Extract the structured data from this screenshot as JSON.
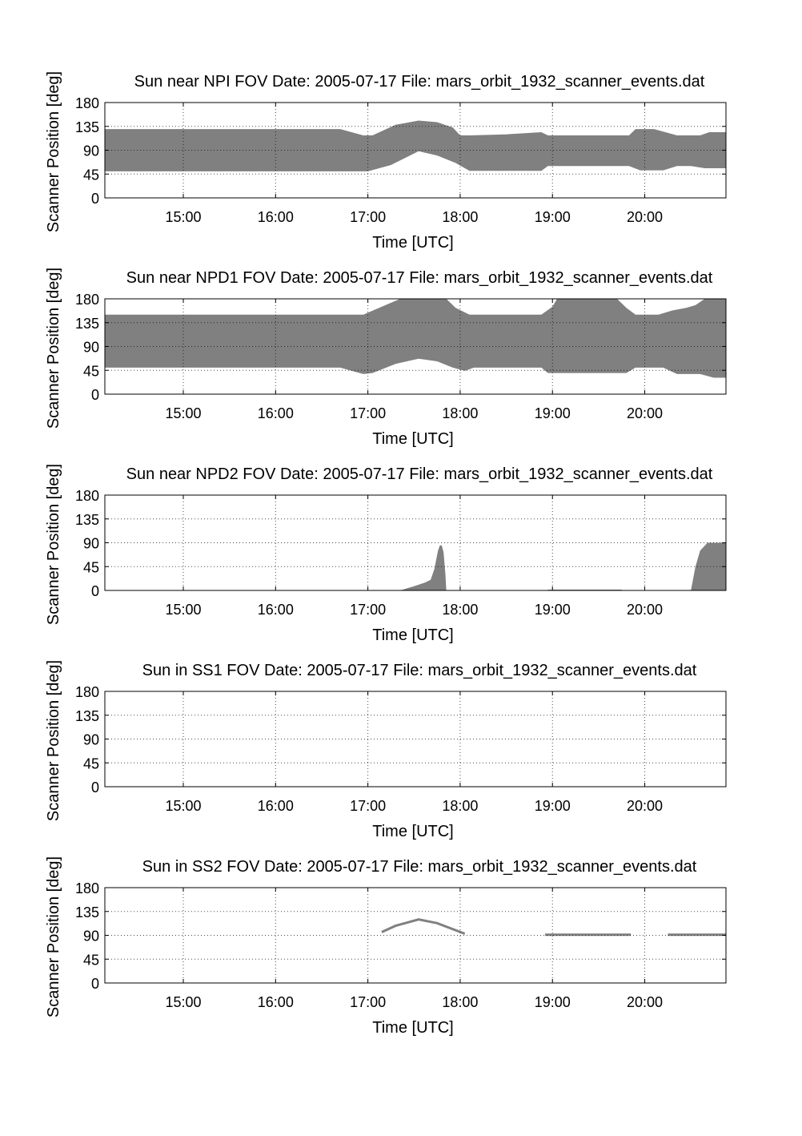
{
  "chart_data": [
    {
      "type": "area",
      "title": "Sun near NPI FOV   Date: 2005-07-17   File: mars_orbit_1932_scanner_events.dat",
      "xlabel": "Time [UTC]",
      "ylabel": "Scanner Position [deg]",
      "xticks": [
        "15:00",
        "16:00",
        "17:00",
        "18:00",
        "19:00",
        "20:00"
      ],
      "yticks": [
        "0",
        "45",
        "90",
        "135",
        "180"
      ],
      "ylim": [
        0,
        180
      ],
      "grid": true,
      "bands": [
        {
          "lower": [
            [
              14.15,
              50
            ],
            [
              16.7,
              50
            ],
            [
              17.0,
              50
            ],
            [
              17.25,
              62
            ],
            [
              17.55,
              88
            ],
            [
              17.75,
              80
            ],
            [
              17.95,
              66
            ],
            [
              18.1,
              51
            ],
            [
              18.5,
              51
            ],
            [
              18.88,
              51
            ],
            [
              18.95,
              60
            ],
            [
              19.5,
              60
            ],
            [
              19.83,
              60
            ],
            [
              19.95,
              52
            ],
            [
              20.2,
              52
            ],
            [
              20.35,
              60
            ],
            [
              20.5,
              60
            ],
            [
              20.65,
              56
            ],
            [
              20.88,
              56
            ]
          ],
          "upper": [
            [
              14.15,
              130
            ],
            [
              16.7,
              130
            ],
            [
              16.95,
              118
            ],
            [
              17.05,
              118
            ],
            [
              17.3,
              138
            ],
            [
              17.55,
              146
            ],
            [
              17.75,
              143
            ],
            [
              17.92,
              133
            ],
            [
              18.0,
              118
            ],
            [
              18.1,
              118
            ],
            [
              18.5,
              120
            ],
            [
              18.88,
              124
            ],
            [
              18.95,
              118
            ],
            [
              19.5,
              118
            ],
            [
              19.83,
              118
            ],
            [
              19.9,
              130
            ],
            [
              20.1,
              130
            ],
            [
              20.35,
              118
            ],
            [
              20.6,
              118
            ],
            [
              20.7,
              124
            ],
            [
              20.88,
              124
            ]
          ]
        }
      ]
    },
    {
      "type": "area",
      "title": "Sun near NPD1 FOV   Date: 2005-07-17   File: mars_orbit_1932_scanner_events.dat",
      "xlabel": "Time [UTC]",
      "ylabel": "Scanner Position [deg]",
      "xticks": [
        "15:00",
        "16:00",
        "17:00",
        "18:00",
        "19:00",
        "20:00"
      ],
      "yticks": [
        "0",
        "45",
        "90",
        "135",
        "180"
      ],
      "ylim": [
        0,
        180
      ],
      "grid": true,
      "bands": [
        {
          "lower": [
            [
              14.15,
              50
            ],
            [
              16.7,
              50
            ],
            [
              16.95,
              38
            ],
            [
              17.05,
              40
            ],
            [
              17.3,
              57
            ],
            [
              17.55,
              67
            ],
            [
              17.75,
              62
            ],
            [
              17.92,
              50
            ],
            [
              18.05,
              44
            ],
            [
              18.15,
              50
            ],
            [
              18.88,
              50
            ],
            [
              18.95,
              40
            ],
            [
              19.8,
              40
            ],
            [
              19.9,
              50
            ],
            [
              20.2,
              50
            ],
            [
              20.35,
              38
            ],
            [
              20.6,
              38
            ],
            [
              20.75,
              31
            ],
            [
              20.88,
              31
            ]
          ],
          "upper": [
            [
              14.15,
              150
            ],
            [
              16.7,
              150
            ],
            [
              16.95,
              150
            ],
            [
              17.15,
              165
            ],
            [
              17.35,
              180
            ],
            [
              17.85,
              180
            ],
            [
              17.95,
              163
            ],
            [
              18.1,
              150
            ],
            [
              18.88,
              150
            ],
            [
              19.0,
              165
            ],
            [
              19.05,
              180
            ],
            [
              19.7,
              180
            ],
            [
              19.8,
              163
            ],
            [
              19.9,
              150
            ],
            [
              20.15,
              150
            ],
            [
              20.3,
              158
            ],
            [
              20.45,
              163
            ],
            [
              20.55,
              168
            ],
            [
              20.65,
              180
            ],
            [
              20.88,
              180
            ]
          ]
        }
      ]
    },
    {
      "type": "area",
      "title": "Sun near NPD2 FOV   Date: 2005-07-17   File: mars_orbit_1932_scanner_events.dat",
      "xlabel": "Time [UTC]",
      "ylabel": "Scanner Position [deg]",
      "xticks": [
        "15:00",
        "16:00",
        "17:00",
        "18:00",
        "19:00",
        "20:00"
      ],
      "yticks": [
        "0",
        "45",
        "90",
        "135",
        "180"
      ],
      "ylim": [
        0,
        180
      ],
      "grid": true,
      "bands": [
        {
          "lower": [
            [
              17.35,
              0
            ],
            [
              17.85,
              0
            ]
          ],
          "upper": [
            [
              17.35,
              0
            ],
            [
              17.5,
              8
            ],
            [
              17.62,
              15
            ],
            [
              17.68,
              20
            ],
            [
              17.72,
              40
            ],
            [
              17.76,
              75
            ],
            [
              17.78,
              85
            ],
            [
              17.8,
              85
            ],
            [
              17.82,
              72
            ],
            [
              17.84,
              30
            ],
            [
              17.85,
              0
            ]
          ]
        },
        {
          "lower": [
            [
              18.95,
              0
            ],
            [
              19.75,
              0
            ]
          ],
          "upper": [
            [
              18.95,
              1.5
            ],
            [
              19.75,
              1.5
            ]
          ]
        },
        {
          "lower": [
            [
              20.5,
              0
            ],
            [
              20.88,
              0
            ]
          ],
          "upper": [
            [
              20.5,
              0
            ],
            [
              20.55,
              45
            ],
            [
              20.6,
              75
            ],
            [
              20.68,
              90
            ],
            [
              20.88,
              90
            ]
          ]
        }
      ]
    },
    {
      "type": "area",
      "title": "Sun in SS1 FOV   Date: 2005-07-17   File: mars_orbit_1932_scanner_events.dat",
      "xlabel": "Time [UTC]",
      "ylabel": "Scanner Position [deg]",
      "xticks": [
        "15:00",
        "16:00",
        "17:00",
        "18:00",
        "19:00",
        "20:00"
      ],
      "yticks": [
        "0",
        "45",
        "90",
        "135",
        "180"
      ],
      "ylim": [
        0,
        180
      ],
      "grid": true,
      "bands": []
    },
    {
      "type": "line",
      "title": "Sun in SS2 FOV   Date: 2005-07-17   File: mars_orbit_1932_scanner_events.dat",
      "xlabel": "Time [UTC]",
      "ylabel": "Scanner Position [deg]",
      "xticks": [
        "15:00",
        "16:00",
        "17:00",
        "18:00",
        "19:00",
        "20:00"
      ],
      "yticks": [
        "0",
        "45",
        "90",
        "135",
        "180"
      ],
      "ylim": [
        0,
        180
      ],
      "grid": true,
      "lines": [
        [
          [
            17.15,
            96
          ],
          [
            17.3,
            108
          ],
          [
            17.55,
            120
          ],
          [
            17.75,
            113
          ],
          [
            18.05,
            93
          ]
        ],
        [
          [
            18.92,
            91
          ],
          [
            19.85,
            91
          ]
        ],
        [
          [
            20.25,
            91
          ],
          [
            20.88,
            91
          ]
        ]
      ]
    }
  ]
}
